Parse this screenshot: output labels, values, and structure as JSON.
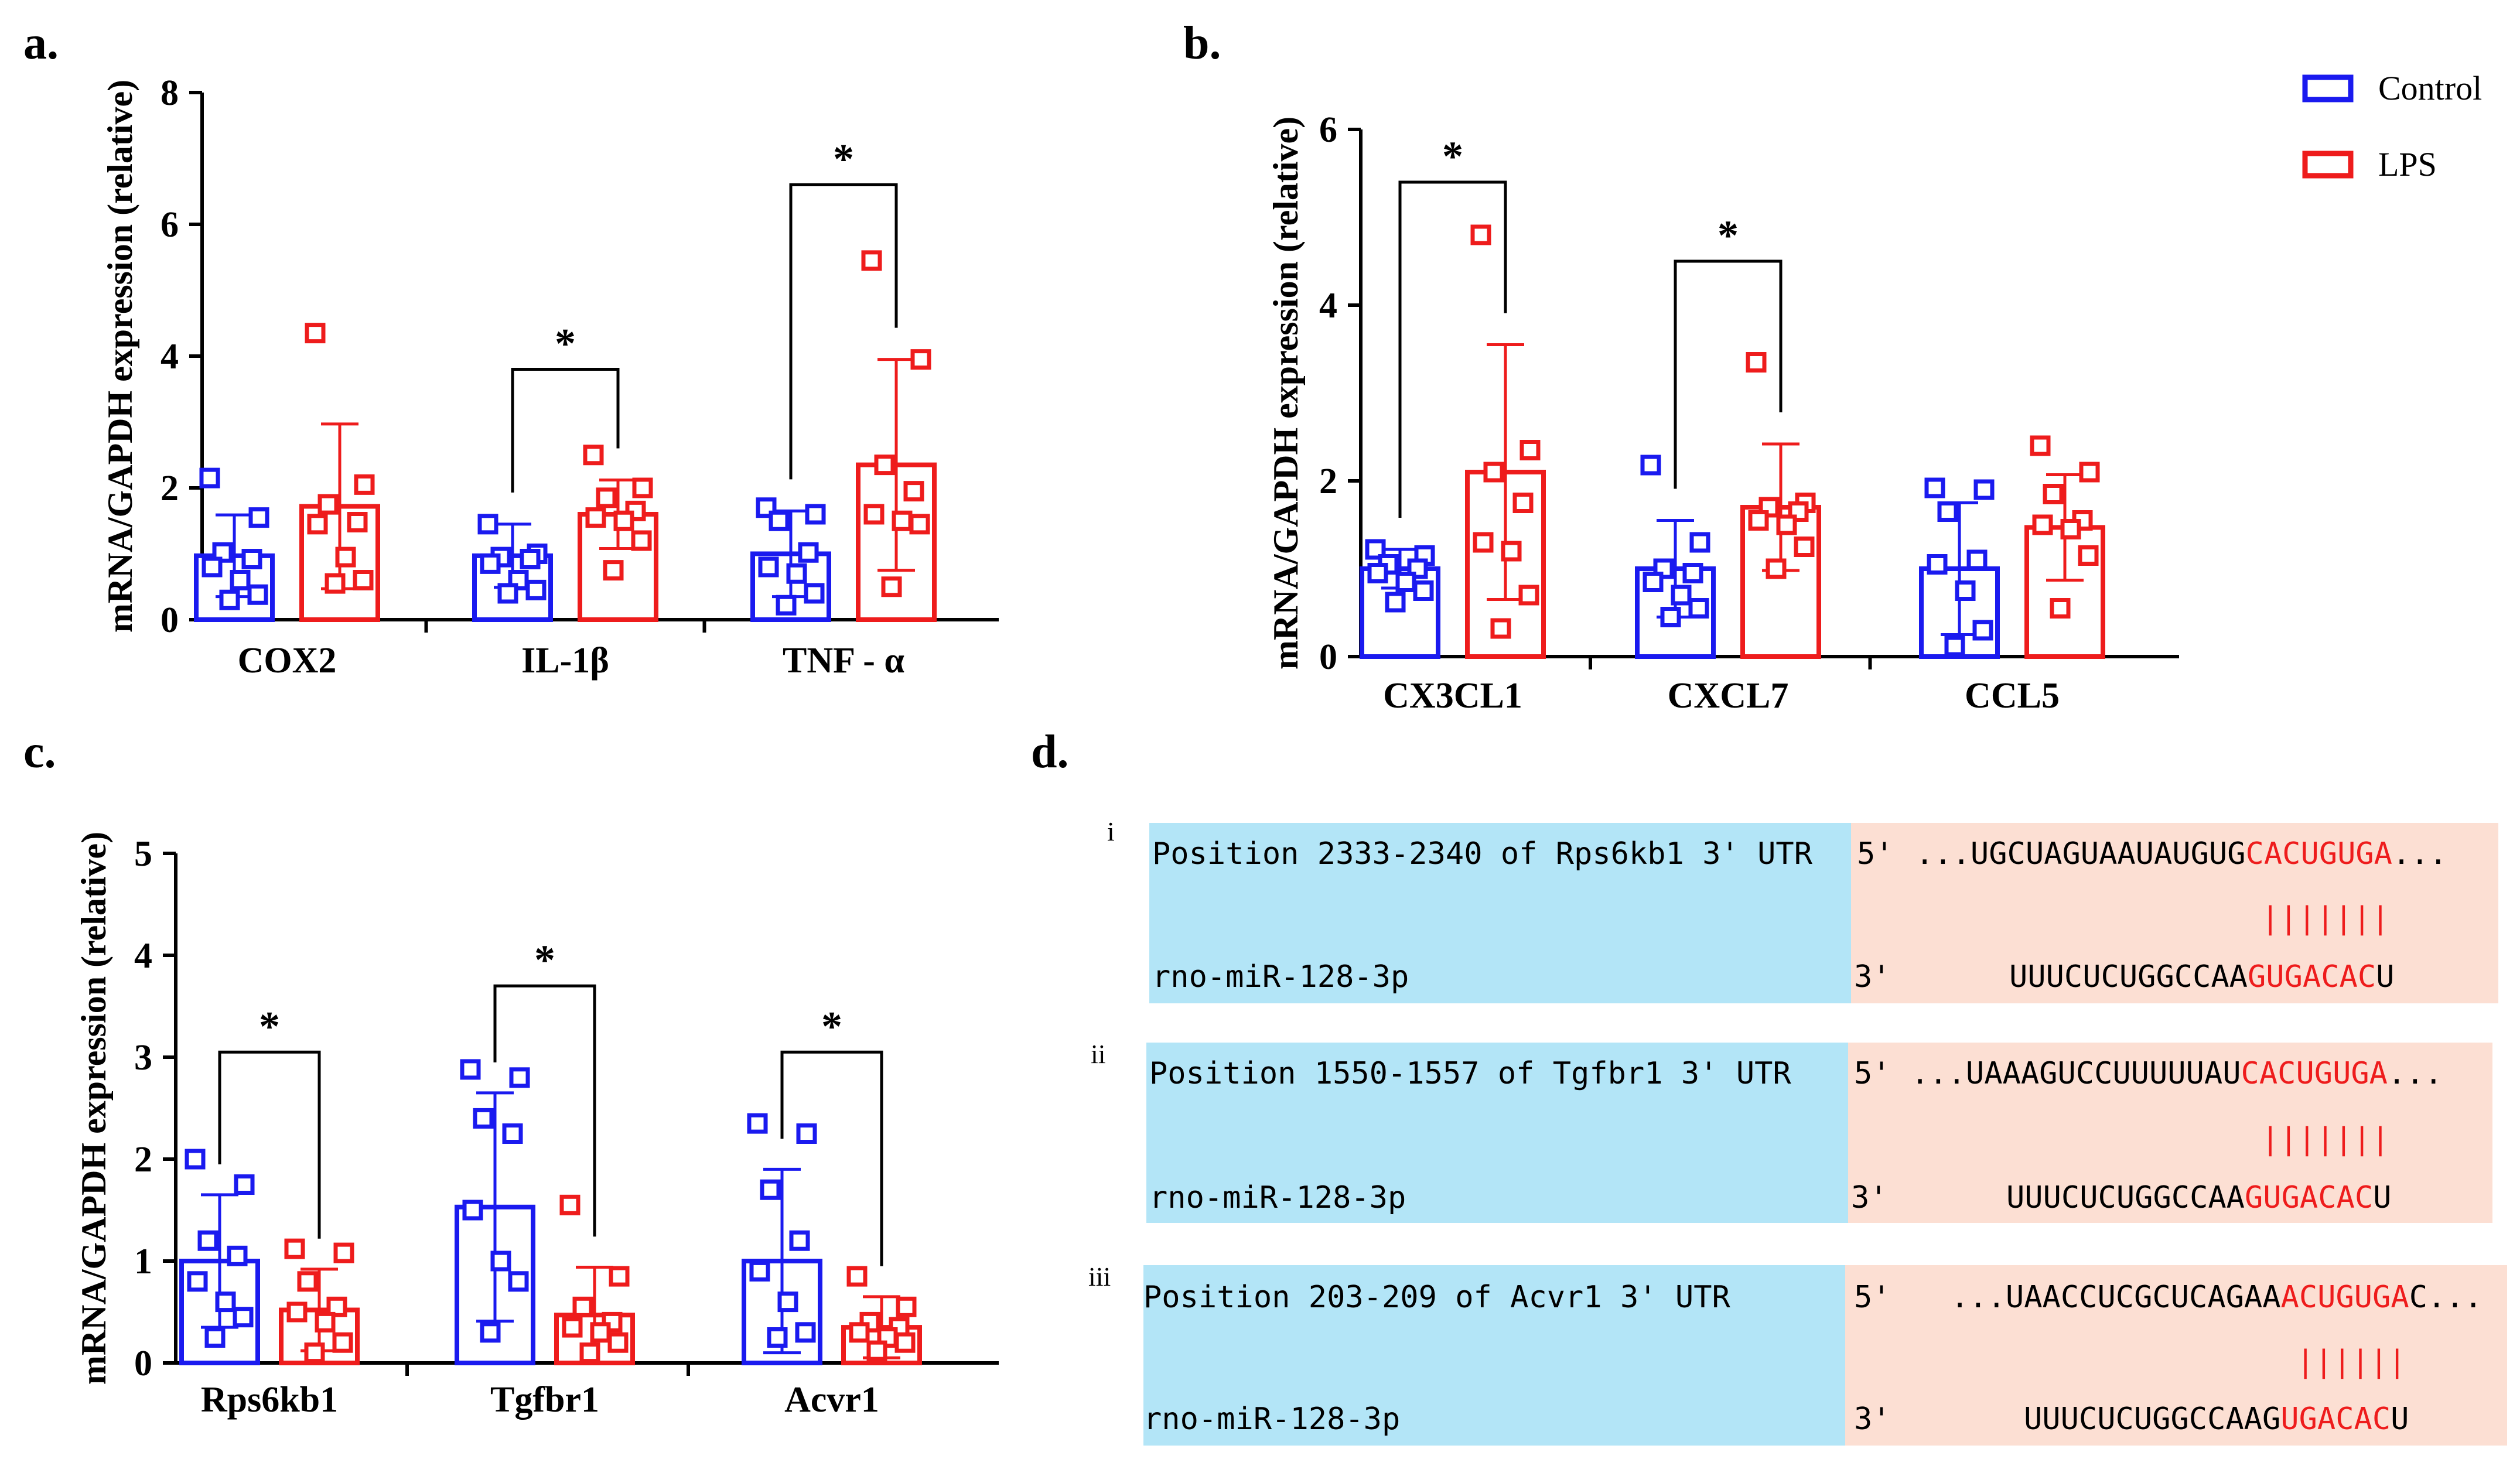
{
  "colors": {
    "control": "#1a1aef",
    "lps": "#ee1c1c",
    "blue_box": "#b3e5f7",
    "peach_box": "#fcdfd3"
  },
  "legend": {
    "control": "Control",
    "lps": "LPS"
  },
  "chart_data": [
    {
      "panel": "a.",
      "type": "bar",
      "ylabel": "mRNA/GAPDH expression (relative)",
      "ylim": [
        0,
        8
      ],
      "yticks": [
        0,
        2,
        4,
        6,
        8
      ],
      "categories": [
        "COX2",
        "IL-1β",
        "TNF - α"
      ],
      "series": [
        {
          "name": "Control",
          "values": [
            0.97,
            0.97,
            1.0
          ],
          "sd": [
            0.62,
            0.48,
            0.65
          ],
          "points": [
            [
              2.15,
              1.55,
              1.02,
              0.92,
              0.8,
              0.6,
              0.38,
              0.3
            ],
            [
              1.45,
              1.0,
              0.95,
              0.92,
              0.85,
              0.6,
              0.45,
              0.4
            ],
            [
              1.7,
              1.6,
              1.5,
              1.02,
              0.8,
              0.7,
              0.4,
              0.22
            ]
          ]
        },
        {
          "name": "LPS",
          "values": [
            1.72,
            1.6,
            2.35
          ],
          "sd": [
            1.25,
            0.52,
            1.6
          ],
          "points": [
            [
              4.35,
              2.05,
              1.75,
              1.48,
              1.45,
              0.95,
              0.6,
              0.55
            ],
            [
              2.5,
              2.0,
              1.85,
              1.65,
              1.55,
              1.5,
              1.2,
              0.75
            ],
            [
              5.45,
              3.95,
              2.35,
              1.95,
              1.6,
              1.5,
              1.45,
              0.5
            ]
          ]
        }
      ],
      "significance": [
        {
          "category": 1,
          "label": "*"
        },
        {
          "category": 2,
          "label": "*"
        }
      ]
    },
    {
      "panel": "b.",
      "type": "bar",
      "ylabel": "mRNA/GAPDH expression (relative)",
      "ylim": [
        0,
        6
      ],
      "yticks": [
        0,
        2,
        4,
        6
      ],
      "categories": [
        "CX3CL1",
        "CXCL7",
        "CCL5"
      ],
      "series": [
        {
          "name": "Control",
          "values": [
            1.0,
            1.0,
            1.0
          ],
          "sd": [
            0.22,
            0.55,
            0.75
          ],
          "points": [
            [
              1.22,
              1.15,
              1.05,
              1.0,
              0.95,
              0.85,
              0.75,
              0.62
            ],
            [
              2.18,
              1.3,
              1.0,
              0.95,
              0.85,
              0.7,
              0.55,
              0.45
            ],
            [
              1.92,
              1.9,
              1.65,
              1.1,
              1.05,
              0.75,
              0.3,
              0.12
            ]
          ]
        },
        {
          "name": "LPS",
          "values": [
            2.1,
            1.7,
            1.47
          ],
          "sd": [
            1.45,
            0.72,
            0.6
          ],
          "points": [
            [
              4.8,
              2.35,
              2.1,
              1.75,
              1.3,
              1.2,
              0.7,
              0.32
            ],
            [
              3.35,
              1.75,
              1.7,
              1.65,
              1.55,
              1.5,
              1.25,
              1.0
            ],
            [
              2.4,
              2.1,
              1.85,
              1.55,
              1.5,
              1.45,
              1.15,
              0.55
            ]
          ]
        }
      ],
      "significance": [
        {
          "category": 0,
          "label": "*"
        },
        {
          "category": 1,
          "label": "*"
        }
      ]
    },
    {
      "panel": "c.",
      "type": "bar",
      "ylabel": "mRNA/GAPDH expression (relative)",
      "ylim": [
        0,
        5
      ],
      "yticks": [
        0,
        1,
        2,
        3,
        4,
        5
      ],
      "categories": [
        "Rps6kb1",
        "Tgfbr1",
        "Acvr1"
      ],
      "series": [
        {
          "name": "Control",
          "values": [
            1.0,
            1.53,
            1.0
          ],
          "sd": [
            0.65,
            1.12,
            0.9
          ],
          "points": [
            [
              2.0,
              1.75,
              1.2,
              1.05,
              0.8,
              0.6,
              0.45,
              0.25
            ],
            [
              2.88,
              2.8,
              2.4,
              2.25,
              1.5,
              1.0,
              0.8,
              0.3
            ],
            [
              2.35,
              2.25,
              1.7,
              1.2,
              0.9,
              0.6,
              0.3,
              0.25
            ]
          ]
        },
        {
          "name": "LPS",
          "values": [
            0.52,
            0.47,
            0.35
          ],
          "sd": [
            0.4,
            0.47,
            0.3
          ],
          "points": [
            [
              1.12,
              1.08,
              0.8,
              0.55,
              0.5,
              0.4,
              0.2,
              0.1
            ],
            [
              1.55,
              0.85,
              0.55,
              0.4,
              0.35,
              0.3,
              0.2,
              0.1
            ],
            [
              0.85,
              0.55,
              0.4,
              0.35,
              0.3,
              0.25,
              0.2,
              0.12
            ]
          ]
        }
      ],
      "significance": [
        {
          "category": 0,
          "label": "*"
        },
        {
          "category": 1,
          "label": "*"
        },
        {
          "category": 2,
          "label": "*"
        }
      ]
    }
  ],
  "panel_d": {
    "label": "d.",
    "rows": [
      {
        "roman": "i",
        "title": "Position 2333-2340 of Rps6kb1 3' UTR",
        "mirna": "rno-miR-128-3p",
        "p5": "5'",
        "p3": "3'",
        "top_black": "...UGCUAGUAAUAUGUG",
        "top_red": "CACUGUGA",
        "top_tail": "...",
        "pairs": "|||||||",
        "bottom_black": "UUUCUCUGGCCAA",
        "bottom_red": "GUGACAC",
        "bottom_tail": "U"
      },
      {
        "roman": "ii",
        "title": "Position 1550-1557 of Tgfbr1 3' UTR",
        "mirna": "rno-miR-128-3p",
        "p5": "5'",
        "p3": "3'",
        "top_black": "...UAAAGUCCUUUUUAU",
        "top_red": "CACUGUGA",
        "top_tail": "...",
        "pairs": "|||||||",
        "bottom_black": "UUUCUCUGGCCAA",
        "bottom_red": "GUGACAC",
        "bottom_tail": "U"
      },
      {
        "roman": "iii",
        "title": "Position 203-209 of Acvr1 3' UTR",
        "mirna": "rno-miR-128-3p",
        "p5": "5'",
        "p3": "3'",
        "top_black": "...UAACCUCGCUCAGAA",
        "top_red": "ACUGUGA",
        "top_tail": "C...",
        "pairs": "||||||",
        "bottom_black": "UUUCUCUGGCCAAG",
        "bottom_red": "UGACAC",
        "bottom_tail": "U"
      }
    ]
  }
}
